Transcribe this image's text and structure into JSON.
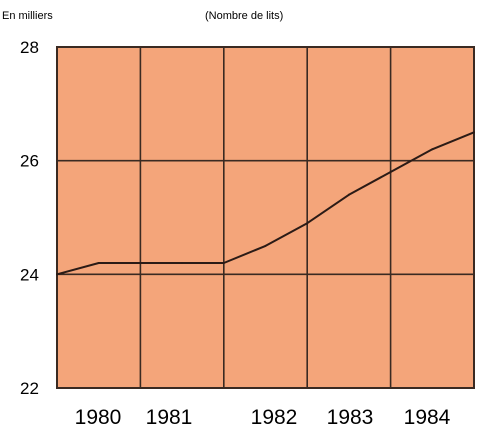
{
  "chart_data": {
    "type": "line",
    "unit_label": "En milliers",
    "subtitle": "(Nombre de lits)",
    "x": [
      1979.0,
      1979.5,
      1980.0,
      1980.5,
      1981.0,
      1981.5,
      1982.0,
      1982.5,
      1983.0,
      1983.5,
      1984.0
    ],
    "x_ticks": [
      "1980",
      "1981",
      "1982",
      "1983",
      "1984"
    ],
    "series": [
      {
        "values": [
          24.0,
          24.2,
          24.2,
          24.2,
          24.2,
          24.5,
          24.9,
          25.4,
          25.8,
          26.2,
          26.5
        ]
      }
    ],
    "y_ticks": [
      22,
      24,
      26,
      28
    ],
    "ylim": [
      22,
      28
    ],
    "grid": true,
    "colors": {
      "plot_background": "#f4a57a",
      "grid": "#3a2a22",
      "line": "#2b1b16"
    }
  }
}
